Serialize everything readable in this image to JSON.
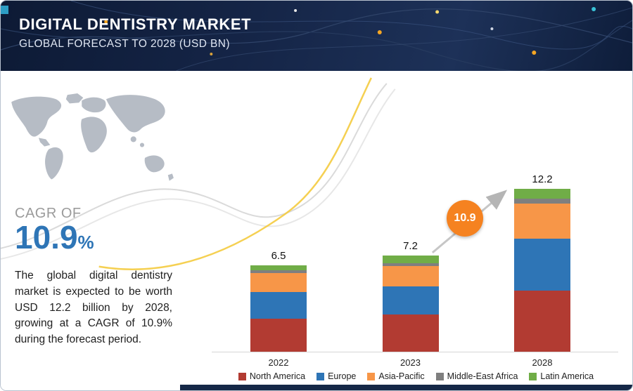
{
  "header": {
    "title": "DIGITAL DENTISTRY MARKET",
    "subtitle": "GLOBAL FORECAST TO 2028 (USD BN)"
  },
  "sidebar": {
    "cagr_label": "CAGR OF",
    "cagr_value": "10.9",
    "cagr_percent": "%",
    "description": "The global digital dentistry market is expected to be worth USD 12.2 billion by 2028, growing at a CAGR of 10.9% during the forecast period."
  },
  "chart_data": {
    "type": "bar",
    "stacked": true,
    "categories": [
      "2022",
      "2023",
      "2028"
    ],
    "totals": [
      "6.5",
      "7.2",
      "12.2"
    ],
    "series": [
      {
        "name": "North America",
        "color": "#b23b32",
        "values": [
          2.5,
          2.8,
          4.6
        ]
      },
      {
        "name": "Europe",
        "color": "#2e75b6",
        "values": [
          2.0,
          2.1,
          3.9
        ]
      },
      {
        "name": "Asia-Pacific",
        "color": "#f79648",
        "values": [
          1.4,
          1.5,
          2.6
        ]
      },
      {
        "name": "Middle-East Africa",
        "color": "#7f7f7f",
        "values": [
          0.2,
          0.25,
          0.4
        ]
      },
      {
        "name": "Latin America",
        "color": "#70ad47",
        "values": [
          0.4,
          0.55,
          0.7
        ]
      }
    ],
    "growth_badge": "10.9",
    "title": "Digital Dentistry Market, Global Forecast to 2028 (USD BN)",
    "xlabel": "",
    "ylabel": "",
    "ylim": [
      0,
      13
    ],
    "grid": false,
    "legend_position": "bottom"
  },
  "colors": {
    "badge": "#f58220",
    "header_bg": "#13223f",
    "cagr_blue": "#2e75b6",
    "footer_strip": "#152847",
    "axis_line": "#d6d6d6",
    "map_gray": "#b6bcc5"
  }
}
